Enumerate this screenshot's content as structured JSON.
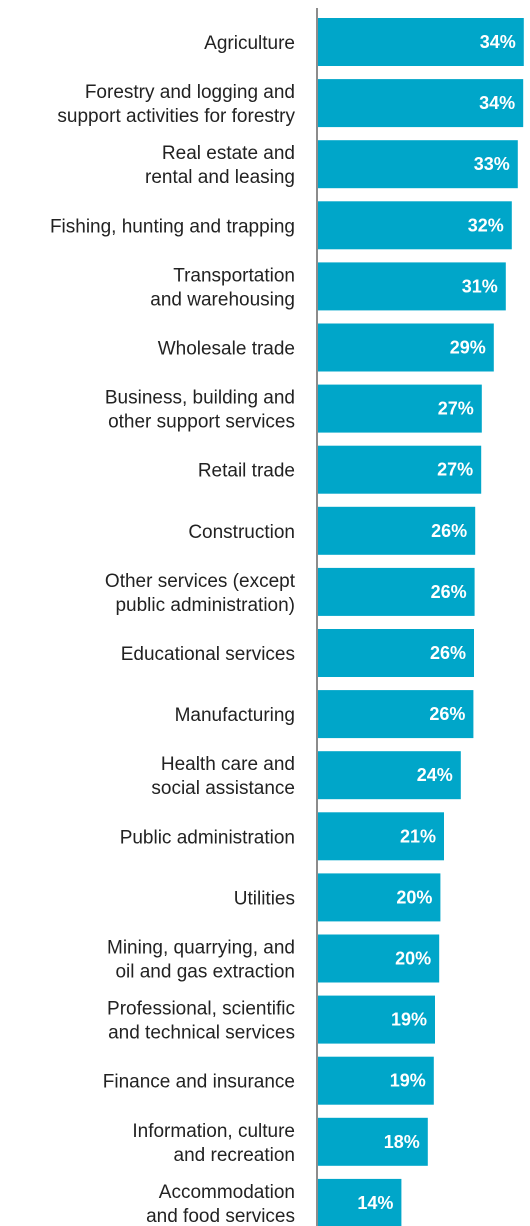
{
  "chart_data": {
    "type": "bar",
    "orientation": "horizontal",
    "categories": [
      [
        "Agriculture"
      ],
      [
        "Forestry and logging and",
        "support activities for forestry"
      ],
      [
        "Real estate and",
        "rental and leasing"
      ],
      [
        "Fishing, hunting and trapping"
      ],
      [
        "Transportation",
        "and warehousing"
      ],
      [
        "Wholesale trade"
      ],
      [
        "Business, building and",
        "other support services"
      ],
      [
        "Retail trade"
      ],
      [
        "Construction"
      ],
      [
        "Other services (except",
        "public administration)"
      ],
      [
        "Educational services"
      ],
      [
        "Manufacturing"
      ],
      [
        "Health care and",
        "social assistance"
      ],
      [
        "Public administration"
      ],
      [
        "Utilities"
      ],
      [
        "Mining, quarrying, and",
        "oil and gas extraction"
      ],
      [
        "Professional, scientific",
        "and technical services"
      ],
      [
        "Finance and insurance"
      ],
      [
        "Information, culture",
        "and recreation"
      ],
      [
        "Accommodation",
        "and food services"
      ]
    ],
    "values": [
      34.3,
      34.2,
      33.3,
      32.3,
      31.3,
      29.3,
      27.3,
      27.2,
      26.2,
      26.1,
      26.0,
      25.9,
      23.8,
      21.0,
      20.4,
      20.2,
      19.5,
      19.3,
      18.3,
      13.9
    ],
    "value_labels": [
      "34%",
      "34%",
      "33%",
      "32%",
      "31%",
      "29%",
      "27%",
      "27%",
      "26%",
      "26%",
      "26%",
      "26%",
      "24%",
      "21%",
      "20%",
      "20%",
      "19%",
      "19%",
      "18%",
      "14%"
    ],
    "xlim": [
      0,
      35
    ],
    "colors": {
      "bar": "#00A6C9",
      "axis": "#8c8c8c",
      "label_text": "#222222",
      "value_text": "#ffffff"
    }
  }
}
